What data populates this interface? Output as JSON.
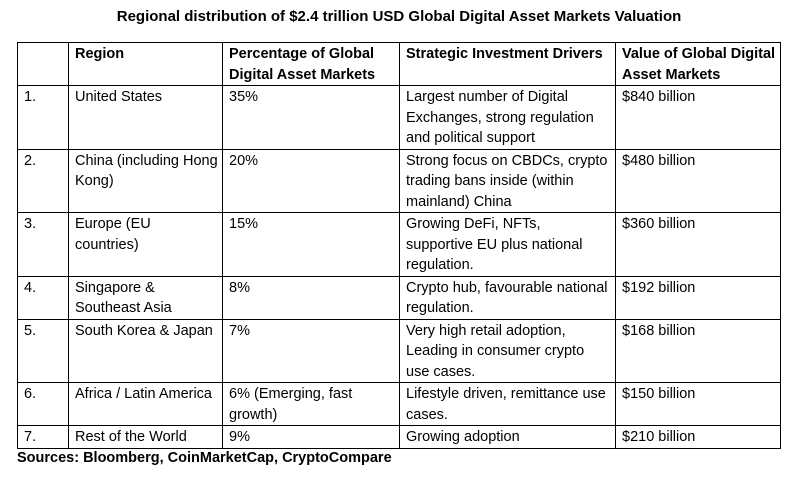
{
  "title": "Regional distribution of $2.4 trillion USD Global Digital Asset Markets Valuation",
  "table": {
    "headers": [
      "",
      "Region",
      "Percentage of Global Digital Asset Markets",
      "Strategic Investment Drivers",
      "Value of Global Digital Asset Markets"
    ],
    "rows": [
      {
        "num": "1.",
        "region": "United States",
        "percent": "35%",
        "drivers": "Largest number of Digital Exchanges, strong regulation and political support",
        "value": "$840 billion"
      },
      {
        "num": "2.",
        "region": "China (including Hong Kong)",
        "percent": "20%",
        "drivers": "Strong focus on CBDCs, crypto trading bans inside (within mainland) China",
        "value": "$480 billion"
      },
      {
        "num": "3.",
        "region": "Europe (EU countries)",
        "percent": "15%",
        "drivers": "Growing DeFi, NFTs, supportive EU plus national regulation.",
        "value": "$360 billion"
      },
      {
        "num": "4.",
        "region": "Singapore & Southeast Asia",
        "percent": "8%",
        "drivers": "Crypto hub, favourable national regulation.",
        "value": "$192 billion"
      },
      {
        "num": "5.",
        "region": "South Korea & Japan",
        "percent": "7%",
        "drivers": "Very high retail adoption, Leading in consumer crypto use cases.",
        "value": "$168 billion"
      },
      {
        "num": "6.",
        "region": "Africa / Latin America",
        "percent": "6%  (Emerging, fast growth)",
        "drivers": "Lifestyle driven, remittance use cases.",
        "value": "$150 billion"
      },
      {
        "num": "7.",
        "region": "Rest of the World",
        "percent": "9%",
        "drivers": "Growing adoption",
        "value": "$210 billion"
      }
    ]
  },
  "sources": "Sources: Bloomberg, CoinMarketCap, CryptoCompare"
}
